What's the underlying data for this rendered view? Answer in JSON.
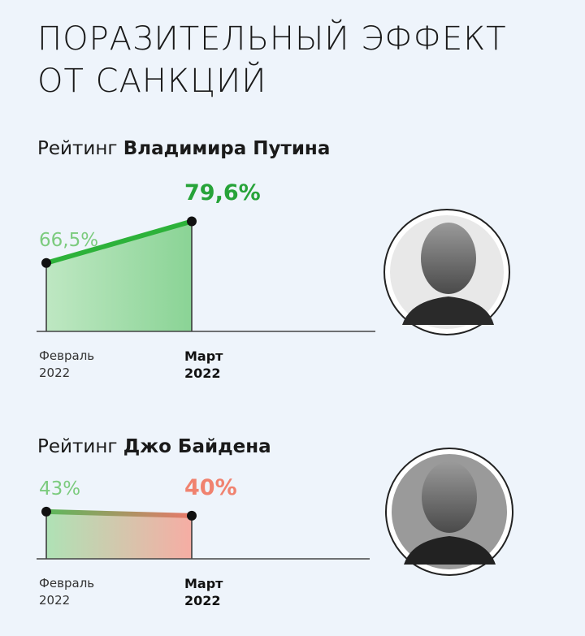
{
  "title_lines": [
    "ПОРАЗИТЕЛЬНЫЙ ЭФФЕКТ",
    "ОТ САНКЦИЙ"
  ],
  "chart_data": [
    {
      "type": "line",
      "title": "Рейтинг",
      "title_bold": "Владимира Путина",
      "categories": [
        "Февраль 2022",
        "Март 2022"
      ],
      "values": [
        66.5,
        79.6
      ],
      "value_labels": [
        "66,5%",
        "79,6%"
      ],
      "label_colors": [
        "#7ccb7e",
        "#27a339"
      ],
      "color": "#2db23a",
      "area_colors": [
        "#b9e6bc",
        "#7fd08a"
      ],
      "ylim": [
        45,
        93
      ]
    },
    {
      "type": "line",
      "title": "Рейтинг",
      "title_bold": "Джо Байдена",
      "categories": [
        "Февраль 2022",
        "Март 2022"
      ],
      "values": [
        43,
        40
      ],
      "value_labels": [
        "43%",
        "40%"
      ],
      "label_colors": [
        "#7ccb7e",
        "#f0826f"
      ],
      "color": [
        "#5cb85c",
        "#e9786a"
      ],
      "area_colors": [
        "#a8e0ae",
        "#f7a59a"
      ],
      "ylim": [
        8,
        61
      ]
    }
  ]
}
